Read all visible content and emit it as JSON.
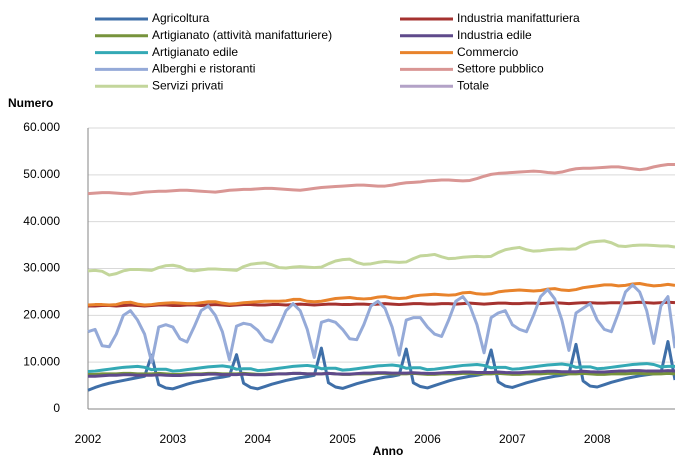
{
  "chart_data": {
    "type": "line",
    "y_label": "Numero",
    "x_label": "Anno",
    "categories": [
      "2002",
      null,
      null,
      null,
      null,
      null,
      null,
      null,
      null,
      null,
      null,
      null,
      "2003",
      null,
      null,
      null,
      null,
      null,
      null,
      null,
      null,
      null,
      null,
      null,
      "2004",
      null,
      null,
      null,
      null,
      null,
      null,
      null,
      null,
      null,
      null,
      null,
      "2005",
      null,
      null,
      null,
      null,
      null,
      null,
      null,
      null,
      null,
      null,
      null,
      "2006",
      null,
      null,
      null,
      null,
      null,
      null,
      null,
      null,
      null,
      null,
      null,
      "2007",
      null,
      null,
      null,
      null,
      null,
      null,
      null,
      null,
      null,
      null,
      null,
      "2008",
      null,
      null,
      null,
      null,
      null,
      null,
      null,
      null,
      null,
      null,
      null
    ],
    "ylim": [
      0,
      60000
    ],
    "yticks": [
      {
        "value": 0,
        "label": "0"
      },
      {
        "value": 10000,
        "label": "10.000"
      },
      {
        "value": 20000,
        "label": "20.000"
      },
      {
        "value": 30000,
        "label": "30.000"
      },
      {
        "value": 40000,
        "label": "40.000"
      },
      {
        "value": 50000,
        "label": "50.000"
      },
      {
        "value": 60000,
        "label": "60.000"
      }
    ],
    "grid": true,
    "series": [
      {
        "name": "Agricoltura",
        "color": "#3f6fa8",
        "values": [
          4000,
          4600,
          5100,
          5500,
          5800,
          6100,
          6400,
          6700,
          7000,
          11500,
          5200,
          4500,
          4300,
          4800,
          5300,
          5700,
          6000,
          6300,
          6600,
          6800,
          7100,
          11600,
          5500,
          4600,
          4300,
          4800,
          5300,
          5700,
          6100,
          6400,
          6700,
          6900,
          7200,
          13000,
          5600,
          4700,
          4400,
          4900,
          5400,
          5800,
          6200,
          6500,
          6800,
          7000,
          7300,
          12800,
          5600,
          4800,
          4500,
          5000,
          5500,
          6000,
          6400,
          6700,
          7000,
          7200,
          7500,
          12600,
          5800,
          4900,
          4600,
          5100,
          5600,
          6000,
          6400,
          6700,
          7000,
          7200,
          7500,
          13800,
          6000,
          4900,
          4700,
          5200,
          5700,
          6100,
          6500,
          6800,
          7100,
          7300,
          7500,
          7600,
          14400,
          6200
        ]
      },
      {
        "name": "Industria manifatturiera",
        "color": "#a5322f",
        "values": [
          22000,
          22000,
          22100,
          22100,
          22000,
          22100,
          22200,
          22100,
          22000,
          22100,
          22200,
          22200,
          22100,
          22100,
          22200,
          22200,
          22100,
          22200,
          22300,
          22200,
          22100,
          22200,
          22300,
          22300,
          22200,
          22200,
          22300,
          22300,
          22200,
          22300,
          22400,
          22300,
          22200,
          22300,
          22400,
          22400,
          22300,
          22300,
          22400,
          22400,
          22300,
          22400,
          22500,
          22400,
          22300,
          22400,
          22500,
          22500,
          22400,
          22400,
          22500,
          22500,
          22400,
          22500,
          22600,
          22500,
          22400,
          22500,
          22600,
          22600,
          22500,
          22500,
          22600,
          22600,
          22500,
          22600,
          22700,
          22600,
          22500,
          22600,
          22700,
          22700,
          22600,
          22600,
          22700,
          22700,
          22600,
          22700,
          22800,
          22700,
          22600,
          22700,
          22800,
          22700
        ]
      },
      {
        "name": "Artigianato (attività manifatturiere)",
        "color": "#77933c",
        "values": [
          7400,
          7400,
          7500,
          7500,
          7500,
          7600,
          7600,
          7500,
          7500,
          7500,
          7600,
          7500,
          7400,
          7400,
          7500,
          7500,
          7500,
          7600,
          7600,
          7500,
          7500,
          7500,
          7600,
          7500,
          7400,
          7400,
          7500,
          7500,
          7500,
          7600,
          7600,
          7500,
          7500,
          7500,
          7600,
          7500,
          7400,
          7400,
          7500,
          7500,
          7500,
          7600,
          7600,
          7500,
          7500,
          7500,
          7600,
          7500,
          7400,
          7400,
          7500,
          7500,
          7500,
          7600,
          7600,
          7500,
          7500,
          7500,
          7600,
          7500,
          7400,
          7400,
          7500,
          7500,
          7500,
          7600,
          7600,
          7500,
          7500,
          7500,
          7600,
          7500,
          7400,
          7400,
          7500,
          7500,
          7500,
          7600,
          7600,
          7500,
          7500,
          7500,
          7600,
          7500
        ]
      },
      {
        "name": "Industria edile",
        "color": "#5f4a8b",
        "values": [
          7000,
          7000,
          7100,
          7200,
          7200,
          7300,
          7300,
          7200,
          7200,
          7200,
          7300,
          7200,
          7150,
          7150,
          7250,
          7350,
          7350,
          7450,
          7450,
          7350,
          7350,
          7350,
          7450,
          7350,
          7300,
          7300,
          7400,
          7500,
          7500,
          7600,
          7600,
          7500,
          7500,
          7500,
          7600,
          7500,
          7450,
          7450,
          7550,
          7650,
          7650,
          7750,
          7750,
          7650,
          7650,
          7650,
          7750,
          7650,
          7600,
          7600,
          7700,
          7800,
          7800,
          7900,
          7900,
          7800,
          7800,
          7800,
          7900,
          7800,
          7750,
          7750,
          7850,
          7950,
          7950,
          8050,
          8050,
          7950,
          7950,
          7950,
          8050,
          7950,
          7900,
          7900,
          8000,
          8100,
          8100,
          8200,
          8200,
          8100,
          8100,
          8100,
          8200,
          8100
        ]
      },
      {
        "name": "Artigianato edile",
        "color": "#34a9b5",
        "values": [
          8000,
          8100,
          8300,
          8500,
          8700,
          8900,
          9000,
          9100,
          8900,
          8400,
          8500,
          8500,
          8100,
          8200,
          8400,
          8600,
          8800,
          9000,
          9100,
          9200,
          9000,
          8500,
          8600,
          8600,
          8200,
          8300,
          8500,
          8700,
          8900,
          9100,
          9200,
          9300,
          9100,
          8600,
          8700,
          8700,
          8300,
          8400,
          8600,
          8800,
          9000,
          9200,
          9300,
          9400,
          9200,
          8700,
          8800,
          8800,
          8400,
          8500,
          8700,
          8900,
          9100,
          9300,
          9400,
          9500,
          9300,
          8800,
          8900,
          8900,
          8500,
          8600,
          8800,
          9000,
          9200,
          9400,
          9500,
          9600,
          9400,
          8900,
          9000,
          9000,
          8600,
          8700,
          8900,
          9100,
          9300,
          9500,
          9600,
          9700,
          9500,
          9000,
          9100,
          9100
        ]
      },
      {
        "name": "Commercio",
        "color": "#e8832c",
        "values": [
          22200,
          22300,
          22300,
          22200,
          22300,
          22700,
          22800,
          22400,
          22200,
          22300,
          22500,
          22600,
          22700,
          22600,
          22500,
          22500,
          22700,
          22900,
          22900,
          22600,
          22400,
          22500,
          22700,
          22800,
          22900,
          23000,
          23000,
          23000,
          23100,
          23400,
          23400,
          23000,
          22900,
          23000,
          23300,
          23600,
          23700,
          23800,
          23600,
          23500,
          23600,
          23900,
          24000,
          23700,
          23600,
          23700,
          24100,
          24300,
          24400,
          24500,
          24400,
          24300,
          24400,
          24800,
          24900,
          24600,
          24500,
          24600,
          25000,
          25200,
          25300,
          25400,
          25300,
          25200,
          25300,
          25600,
          25700,
          25400,
          25300,
          25500,
          25900,
          26100,
          26300,
          26500,
          26500,
          26300,
          26400,
          26700,
          26800,
          26500,
          26300,
          26400,
          26600,
          26400
        ]
      },
      {
        "name": "Alberghi e ristoranti",
        "color": "#95aad8",
        "values": [
          16500,
          17000,
          13500,
          13300,
          16000,
          20000,
          21000,
          19000,
          16000,
          10000,
          17500,
          18000,
          17500,
          15000,
          14300,
          17500,
          21000,
          22000,
          20000,
          16500,
          10500,
          17700,
          18300,
          18000,
          16800,
          14800,
          14300,
          17500,
          21000,
          22500,
          21000,
          17000,
          11000,
          18500,
          19000,
          18500,
          17000,
          15000,
          14800,
          18000,
          22000,
          23000,
          21500,
          17500,
          11500,
          19000,
          19500,
          19500,
          17500,
          16000,
          15500,
          19000,
          23000,
          24000,
          22000,
          18000,
          12000,
          19500,
          20500,
          21000,
          18000,
          17000,
          16500,
          20000,
          24000,
          25500,
          23500,
          19000,
          12500,
          20500,
          21500,
          22500,
          19000,
          17000,
          16500,
          20500,
          25000,
          26500,
          25000,
          21000,
          14000,
          22000,
          24000,
          13000
        ]
      },
      {
        "name": "Settore pubblico",
        "color": "#d99694",
        "values": [
          46000,
          46100,
          46200,
          46200,
          46100,
          46000,
          45900,
          46100,
          46300,
          46400,
          46500,
          46500,
          46600,
          46700,
          46700,
          46600,
          46500,
          46400,
          46300,
          46500,
          46700,
          46800,
          46900,
          46900,
          47000,
          47100,
          47100,
          47000,
          46900,
          46800,
          46700,
          46900,
          47100,
          47300,
          47400,
          47500,
          47600,
          47700,
          47800,
          47800,
          47700,
          47600,
          47600,
          47800,
          48100,
          48300,
          48400,
          48500,
          48700,
          48800,
          48900,
          48900,
          48800,
          48700,
          48800,
          49200,
          49700,
          50100,
          50300,
          50400,
          50500,
          50600,
          50700,
          50800,
          50700,
          50500,
          50400,
          50600,
          51000,
          51300,
          51400,
          51400,
          51500,
          51600,
          51700,
          51700,
          51500,
          51300,
          51100,
          51300,
          51700,
          52000,
          52200,
          52200
        ]
      },
      {
        "name": "Servizi privati",
        "color": "#c3d69b",
        "values": [
          29500,
          29600,
          29400,
          28600,
          28900,
          29500,
          29800,
          29800,
          29700,
          29600,
          30200,
          30600,
          30700,
          30400,
          29700,
          29500,
          29700,
          29900,
          29900,
          29800,
          29700,
          29600,
          30400,
          30900,
          31100,
          31200,
          30800,
          30200,
          30100,
          30300,
          30400,
          30300,
          30200,
          30300,
          31000,
          31600,
          31900,
          32000,
          31300,
          30900,
          31000,
          31300,
          31500,
          31400,
          31300,
          31400,
          32100,
          32700,
          32800,
          33000,
          32500,
          32100,
          32200,
          32400,
          32500,
          32600,
          32500,
          32600,
          33400,
          34000,
          34300,
          34500,
          34000,
          33700,
          33800,
          34000,
          34100,
          34200,
          34100,
          34200,
          35000,
          35600,
          35800,
          35900,
          35500,
          34800,
          34700,
          34900,
          35000,
          35000,
          34900,
          34800,
          34800,
          34600
        ]
      },
      {
        "name": "Totale",
        "color": "#b3a2c7",
        "values": [
          null,
          null,
          null,
          null,
          null,
          null,
          null,
          null,
          null,
          null,
          null,
          null,
          null,
          null,
          null,
          null,
          null,
          null,
          null,
          null,
          null,
          null,
          null,
          null,
          null,
          null,
          null,
          null,
          null,
          null,
          null,
          null,
          null,
          null,
          null,
          null,
          null,
          null,
          null,
          null,
          null,
          null,
          null,
          null,
          null,
          null,
          null,
          null,
          null,
          null,
          null,
          null,
          null,
          null,
          null,
          null,
          null,
          null,
          null,
          null,
          null,
          null,
          null,
          null,
          null,
          null,
          null,
          null,
          null,
          null,
          null,
          null,
          null,
          null,
          null,
          null,
          null,
          null,
          null,
          null,
          null,
          null,
          null,
          null
        ]
      }
    ]
  }
}
